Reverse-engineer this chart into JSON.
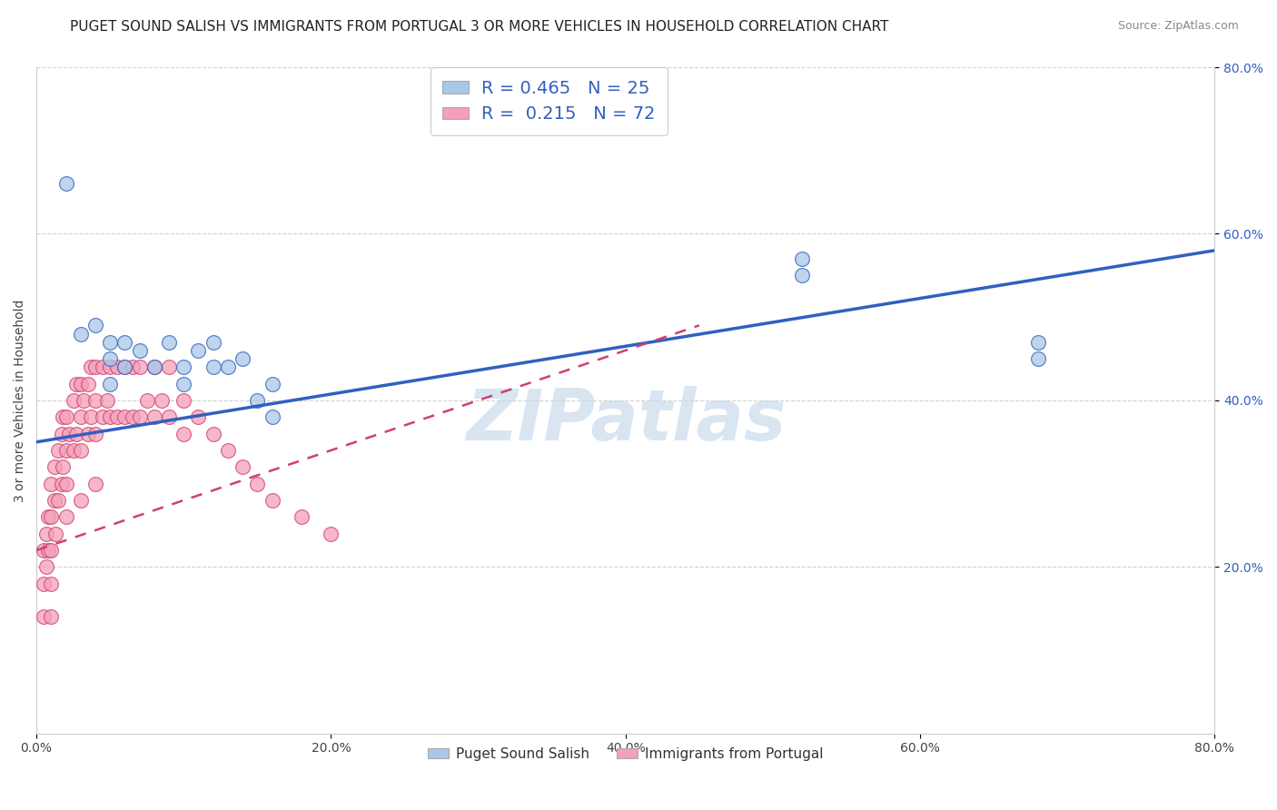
{
  "title": "PUGET SOUND SALISH VS IMMIGRANTS FROM PORTUGAL 3 OR MORE VEHICLES IN HOUSEHOLD CORRELATION CHART",
  "source": "Source: ZipAtlas.com",
  "ylabel": "3 or more Vehicles in Household",
  "watermark": "ZIPatlas",
  "legend_label1": "Puget Sound Salish",
  "legend_label2": "Immigrants from Portugal",
  "R1": 0.465,
  "N1": 25,
  "R2": 0.215,
  "N2": 72,
  "xlim": [
    0,
    0.8
  ],
  "ylim": [
    0,
    0.8
  ],
  "xticks": [
    0.0,
    0.2,
    0.4,
    0.6,
    0.8
  ],
  "yticks_right": [
    0.2,
    0.4,
    0.6,
    0.8
  ],
  "color_blue": "#a8c8e8",
  "color_pink": "#f4a0b8",
  "trend_blue": "#3060c0",
  "trend_pink": "#d04070",
  "blue_x": [
    0.02,
    0.03,
    0.04,
    0.05,
    0.05,
    0.05,
    0.06,
    0.06,
    0.07,
    0.08,
    0.09,
    0.1,
    0.1,
    0.11,
    0.12,
    0.12,
    0.13,
    0.14,
    0.15,
    0.16,
    0.16,
    0.52,
    0.52,
    0.68,
    0.68
  ],
  "blue_y": [
    0.66,
    0.48,
    0.49,
    0.47,
    0.45,
    0.42,
    0.47,
    0.44,
    0.46,
    0.44,
    0.47,
    0.44,
    0.42,
    0.46,
    0.47,
    0.44,
    0.44,
    0.45,
    0.4,
    0.42,
    0.38,
    0.57,
    0.55,
    0.47,
    0.45
  ],
  "pink_x": [
    0.005,
    0.005,
    0.005,
    0.007,
    0.007,
    0.008,
    0.008,
    0.01,
    0.01,
    0.01,
    0.01,
    0.01,
    0.012,
    0.012,
    0.013,
    0.015,
    0.015,
    0.017,
    0.017,
    0.018,
    0.018,
    0.02,
    0.02,
    0.02,
    0.02,
    0.022,
    0.025,
    0.025,
    0.027,
    0.027,
    0.03,
    0.03,
    0.03,
    0.03,
    0.032,
    0.035,
    0.035,
    0.037,
    0.037,
    0.04,
    0.04,
    0.04,
    0.04,
    0.045,
    0.045,
    0.048,
    0.05,
    0.05,
    0.055,
    0.055,
    0.06,
    0.06,
    0.065,
    0.065,
    0.07,
    0.07,
    0.075,
    0.08,
    0.08,
    0.085,
    0.09,
    0.09,
    0.1,
    0.1,
    0.11,
    0.12,
    0.13,
    0.14,
    0.15,
    0.16,
    0.18,
    0.2
  ],
  "pink_y": [
    0.22,
    0.18,
    0.14,
    0.24,
    0.2,
    0.26,
    0.22,
    0.3,
    0.26,
    0.22,
    0.18,
    0.14,
    0.32,
    0.28,
    0.24,
    0.34,
    0.28,
    0.36,
    0.3,
    0.38,
    0.32,
    0.38,
    0.34,
    0.3,
    0.26,
    0.36,
    0.4,
    0.34,
    0.42,
    0.36,
    0.42,
    0.38,
    0.34,
    0.28,
    0.4,
    0.42,
    0.36,
    0.44,
    0.38,
    0.44,
    0.4,
    0.36,
    0.3,
    0.44,
    0.38,
    0.4,
    0.44,
    0.38,
    0.44,
    0.38,
    0.44,
    0.38,
    0.44,
    0.38,
    0.44,
    0.38,
    0.4,
    0.44,
    0.38,
    0.4,
    0.44,
    0.38,
    0.4,
    0.36,
    0.38,
    0.36,
    0.34,
    0.32,
    0.3,
    0.28,
    0.26,
    0.24
  ],
  "background_color": "#ffffff",
  "grid_color": "#cccccc",
  "title_fontsize": 11,
  "axis_fontsize": 10,
  "watermark_color": "#c0d4e8",
  "watermark_fontsize": 56
}
